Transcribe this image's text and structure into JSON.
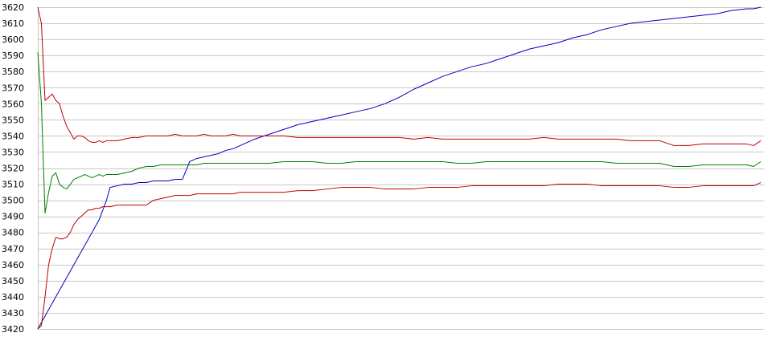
{
  "chart_data": {
    "type": "line",
    "title": "",
    "xlabel": "",
    "ylabel": "",
    "ylim": [
      3420,
      3620
    ],
    "xlim": [
      0,
      100
    ],
    "grid": true,
    "legend": "none",
    "y_ticks": [
      "3620",
      "3610",
      "3600",
      "3590",
      "3580",
      "3570",
      "3560",
      "3550",
      "3540",
      "3530",
      "3520",
      "3510",
      "3500",
      "3490",
      "3480",
      "3470",
      "3460",
      "3450",
      "3440",
      "3430",
      "3420"
    ],
    "x": [
      0,
      0.5,
      1,
      1.5,
      2,
      2.5,
      3,
      3.5,
      4,
      4.5,
      5,
      5.5,
      6,
      6.5,
      7,
      7.5,
      8,
      8.5,
      9,
      9.5,
      10,
      11,
      12,
      13,
      14,
      15,
      16,
      17,
      18,
      19,
      20,
      21,
      22,
      23,
      24,
      25,
      26,
      27,
      28,
      29,
      30,
      32,
      34,
      36,
      38,
      40,
      42,
      44,
      46,
      48,
      50,
      52,
      54,
      56,
      58,
      60,
      62,
      64,
      66,
      68,
      70,
      72,
      74,
      76,
      78,
      80,
      82,
      84,
      86,
      88,
      90,
      92,
      94,
      96,
      98,
      99,
      100
    ],
    "series": [
      {
        "color": "#0000c0",
        "values": [
          3420,
          3424,
          3428,
          3432,
          3436,
          3440,
          3444,
          3448,
          3452,
          3456,
          3460,
          3464,
          3468,
          3472,
          3476,
          3480,
          3484,
          3488,
          3494,
          3500,
          3508,
          3509,
          3510,
          3510,
          3511,
          3511,
          3512,
          3512,
          3512,
          3513,
          3513,
          3524,
          3526,
          3527,
          3528,
          3529,
          3531,
          3532,
          3534,
          3536,
          3538,
          3541,
          3544,
          3547,
          3549,
          3551,
          3553,
          3555,
          3557,
          3560,
          3564,
          3569,
          3573,
          3577,
          3580,
          3583,
          3585,
          3588,
          3591,
          3594,
          3596,
          3598,
          3601,
          3603,
          3606,
          3608,
          3610,
          3611,
          3612,
          3613,
          3614,
          3615,
          3616,
          3618,
          3619,
          3619,
          3620
        ]
      },
      {
        "color": "#c00000",
        "values": [
          3620,
          3610,
          3562,
          3564,
          3566,
          3562,
          3560,
          3552,
          3546,
          3542,
          3538,
          3540,
          3540,
          3539,
          3537,
          3536,
          3536,
          3537,
          3536,
          3537,
          3537,
          3537,
          3538,
          3539,
          3539,
          3540,
          3540,
          3540,
          3540,
          3541,
          3540,
          3540,
          3540,
          3541,
          3540,
          3540,
          3540,
          3541,
          3540,
          3540,
          3540,
          3540,
          3540,
          3539,
          3539,
          3539,
          3539,
          3539,
          3539,
          3539,
          3539,
          3538,
          3539,
          3538,
          3538,
          3538,
          3538,
          3538,
          3538,
          3538,
          3539,
          3538,
          3538,
          3538,
          3538,
          3538,
          3537,
          3537,
          3537,
          3534,
          3534,
          3535,
          3535,
          3535,
          3535,
          3534,
          3537
        ]
      },
      {
        "color": "#008000",
        "values": [
          3592,
          3560,
          3492,
          3505,
          3515,
          3517,
          3510,
          3508,
          3507,
          3510,
          3513,
          3514,
          3515,
          3516,
          3515,
          3514,
          3515,
          3516,
          3515,
          3516,
          3516,
          3516,
          3517,
          3518,
          3520,
          3521,
          3521,
          3522,
          3522,
          3522,
          3522,
          3522,
          3522,
          3523,
          3523,
          3523,
          3523,
          3523,
          3523,
          3523,
          3523,
          3523,
          3524,
          3524,
          3524,
          3523,
          3523,
          3524,
          3524,
          3524,
          3524,
          3524,
          3524,
          3524,
          3523,
          3523,
          3524,
          3524,
          3524,
          3524,
          3524,
          3524,
          3524,
          3524,
          3524,
          3523,
          3523,
          3523,
          3523,
          3521,
          3521,
          3522,
          3522,
          3522,
          3522,
          3521,
          3524
        ]
      },
      {
        "color": "#c00000",
        "values": [
          3420,
          3422,
          3440,
          3460,
          3470,
          3477,
          3476,
          3476,
          3477,
          3480,
          3485,
          3488,
          3490,
          3492,
          3494,
          3494,
          3495,
          3495,
          3496,
          3496,
          3496,
          3497,
          3497,
          3497,
          3497,
          3497,
          3500,
          3501,
          3502,
          3503,
          3503,
          3503,
          3504,
          3504,
          3504,
          3504,
          3504,
          3504,
          3505,
          3505,
          3505,
          3505,
          3505,
          3506,
          3506,
          3507,
          3508,
          3508,
          3508,
          3507,
          3507,
          3507,
          3508,
          3508,
          3508,
          3509,
          3509,
          3509,
          3509,
          3509,
          3509,
          3510,
          3510,
          3510,
          3509,
          3509,
          3509,
          3509,
          3509,
          3508,
          3508,
          3509,
          3509,
          3509,
          3509,
          3509,
          3511
        ]
      }
    ]
  }
}
